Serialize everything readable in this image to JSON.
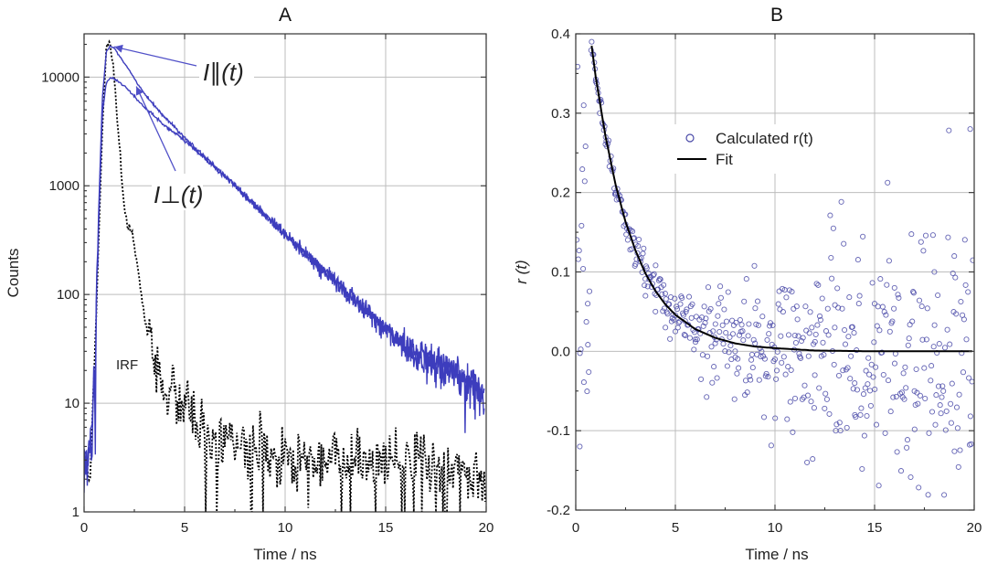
{
  "chart_data": [
    {
      "panel": "A",
      "type": "line",
      "title": "A",
      "xlabel": "Time / ns",
      "ylabel": "Counts",
      "xlim": [
        0,
        20
      ],
      "ylim": [
        1,
        25000
      ],
      "yscale": "log",
      "grid": true,
      "xticks": [
        "0",
        "5",
        "10",
        "15",
        "20"
      ],
      "xtick_values": [
        0,
        5,
        10,
        15,
        20
      ],
      "yticks": [
        "1",
        "10",
        "100",
        "1000",
        "10000"
      ],
      "ytick_values": [
        1,
        10,
        100,
        1000,
        10000
      ],
      "series": [
        {
          "name": "I∥(t)",
          "style": "solid",
          "color": "#3d3dbd",
          "x": [
            0,
            0.3,
            0.5,
            0.7,
            0.9,
            1.1,
            1.3,
            1.5,
            2,
            3,
            4,
            5,
            6,
            7,
            8,
            9,
            10,
            11,
            12,
            13,
            14,
            15,
            16,
            17,
            18,
            19,
            19.8
          ],
          "values": [
            3,
            4,
            15,
            400,
            6000,
            17000,
            19500,
            18500,
            13500,
            7000,
            4300,
            2800,
            1850,
            1230,
            820,
            540,
            360,
            240,
            160,
            107,
            72,
            48,
            34,
            25,
            20,
            16,
            13
          ]
        },
        {
          "name": "I⊥(t)",
          "style": "solid",
          "color": "#3d3dbd",
          "x": [
            0,
            0.3,
            0.5,
            0.7,
            0.9,
            1.1,
            1.3,
            1.5,
            2,
            3,
            4,
            5,
            6,
            7,
            8,
            9,
            10,
            11,
            12,
            13,
            14,
            15,
            16,
            17,
            18,
            19,
            19.8
          ],
          "values": [
            3,
            4,
            12,
            300,
            4500,
            8800,
            9800,
            9700,
            8300,
            5300,
            3600,
            2600,
            1800,
            1220,
            820,
            540,
            360,
            240,
            160,
            107,
            72,
            48,
            34,
            25,
            20,
            16,
            13
          ]
        },
        {
          "name": "IRF",
          "style": "dotted",
          "color": "#000000",
          "x": [
            0,
            0.3,
            0.6,
            0.9,
            1.1,
            1.3,
            1.5,
            1.8,
            2.0,
            2.2,
            2.4,
            2.6,
            3.0,
            3.5,
            4.0,
            5,
            6,
            7,
            8,
            9,
            10,
            12,
            14,
            16,
            18,
            20
          ],
          "values": [
            3,
            2,
            60,
            3000,
            19000,
            20000,
            9000,
            1800,
            600,
            420,
            360,
            220,
            60,
            25,
            14,
            9,
            6,
            4.5,
            4,
            3.5,
            3.2,
            3,
            3,
            3,
            2.5,
            2
          ]
        }
      ],
      "annotations": [
        {
          "text": "I∥(t)",
          "target": "I∥(t)",
          "x": 1.5,
          "y": 19000
        },
        {
          "text": "I⊥(t)",
          "target": "I⊥(t)",
          "x": 2.5,
          "y": 9000
        },
        {
          "text": "IRF"
        }
      ]
    },
    {
      "panel": "B",
      "type": "scatter",
      "title": "B",
      "xlabel": "Time / ns",
      "ylabel": "r (t)",
      "xlim": [
        0,
        20
      ],
      "ylim": [
        -0.2,
        0.4
      ],
      "grid": true,
      "xticks": [
        "0",
        "5",
        "10",
        "15",
        "20"
      ],
      "xtick_values": [
        0,
        5,
        10,
        15,
        20
      ],
      "yticks": [
        "-0.2",
        "-0.1",
        "0.0",
        "0.1",
        "0.2",
        "0.3",
        "0.4"
      ],
      "ytick_values": [
        -0.2,
        -0.1,
        0.0,
        0.1,
        0.2,
        0.3,
        0.4
      ],
      "legend": {
        "placement": "top-center",
        "entries": [
          "Calculated r(t)",
          "Fit"
        ]
      },
      "series": [
        {
          "name": "Calculated r(t)",
          "type": "scatter",
          "color": "#4a4aa8",
          "x": [
            0.2,
            0.4,
            0.6,
            0.8,
            1.0,
            1.2,
            1.5,
            2.0,
            2.5,
            3.0,
            3.5,
            4.0,
            4.5,
            5.0,
            5.5,
            6.0,
            7.0,
            8.0,
            9.0,
            10.0,
            11.0,
            12.0,
            13.0,
            14.0,
            15.0,
            16.0,
            17.0,
            18.0,
            19.0,
            19.8
          ],
          "values": [
            -0.12,
            0.31,
            0.06,
            0.39,
            0.34,
            0.3,
            0.27,
            0.2,
            0.16,
            0.11,
            0.07,
            0.05,
            0.03,
            0.025,
            0.02,
            0.015,
            0.01,
            0.0,
            0.01,
            -0.01,
            0.02,
            -0.03,
            0.03,
            -0.04,
            0.06,
            0.08,
            -0.05,
            0.1,
            0.12,
            0.28
          ],
          "spread": "noise increases with time, about ±0.01 near 3 ns up to ±0.2 near 20 ns"
        },
        {
          "name": "Fit",
          "type": "line",
          "color": "#000000",
          "x": [
            0.8,
            1.0,
            1.5,
            2.0,
            2.5,
            3.0,
            3.5,
            4.0,
            4.5,
            5.0,
            6.0,
            7.0,
            8.0,
            9.0,
            10.0,
            12.0,
            15.0,
            20.0
          ],
          "values": [
            0.385,
            0.346,
            0.27,
            0.21,
            0.163,
            0.127,
            0.098,
            0.076,
            0.059,
            0.046,
            0.028,
            0.017,
            0.01,
            0.006,
            0.004,
            0.001,
            0.0,
            0.0
          ]
        }
      ]
    }
  ]
}
